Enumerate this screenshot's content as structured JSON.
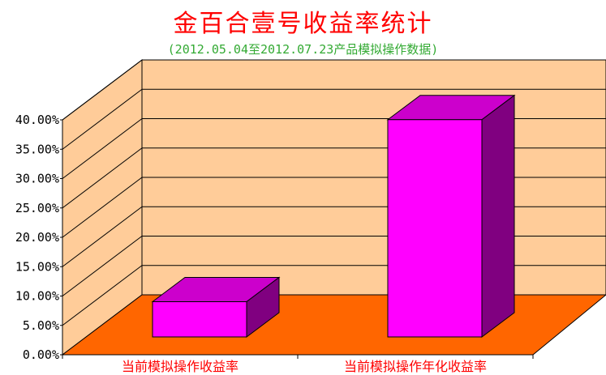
{
  "title": "金百合壹号收益率统计",
  "subtitle": "(2012.05.04至2012.07.23产品模拟操作数据)",
  "chart_data": {
    "type": "bar",
    "title": "金百合壹号收益率统计",
    "subtitle": "(2012.05.04至2012.07.23产品模拟操作数据)",
    "categories": [
      "当前模拟操作收益率",
      "当前模拟操作年化收益率"
    ],
    "values": [
      6.0,
      37.0
    ],
    "ylim": [
      0,
      40
    ],
    "yticks": [
      "0.00%",
      "5.00%",
      "10.00%",
      "15.00%",
      "20.00%",
      "25.00%",
      "30.00%",
      "35.00%",
      "40.00%"
    ],
    "grid": true,
    "colors": {
      "wall": "#ffcc99",
      "floor": "#ff6600",
      "bar_front": "#ff00ff",
      "bar_top": "#cc00cc",
      "bar_side": "#800080",
      "title": "#ff0000",
      "subtitle": "#33aa33",
      "category_label": "#ff0000"
    }
  }
}
